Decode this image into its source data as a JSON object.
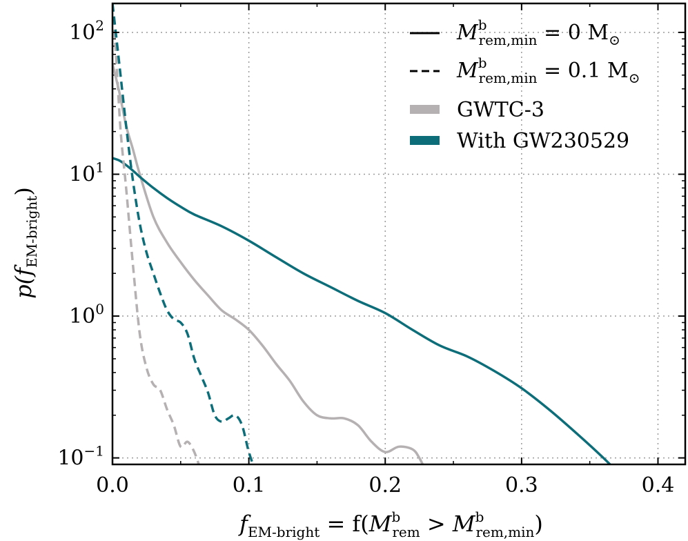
{
  "chart_data": {
    "type": "line",
    "y_scale": "log",
    "xlim": [
      0.0,
      0.42
    ],
    "ylim": [
      0.09,
      160
    ],
    "grid": true,
    "legend_position": "top-right",
    "xlabel": {
      "main": "f",
      "main_sub": "EM-bright",
      "equals": " = f(",
      "m1": "M",
      "m1_sup": "b",
      "m1_sub": "rem",
      "gt": " > ",
      "m2": "M",
      "m2_sup": "b",
      "m2_sub": "rem,min",
      "close": ")"
    },
    "ylabel": {
      "main": "p(f",
      "main_sub": "EM-bright",
      "close": ")"
    },
    "x_ticks": [
      {
        "value": 0.0,
        "label": "0.0"
      },
      {
        "value": 0.1,
        "label": "0.1"
      },
      {
        "value": 0.2,
        "label": "0.2"
      },
      {
        "value": 0.3,
        "label": "0.3"
      },
      {
        "value": 0.4,
        "label": "0.4"
      }
    ],
    "y_ticks": [
      {
        "value": 0.1,
        "base": "10",
        "exp": "−1"
      },
      {
        "value": 1,
        "base": "10",
        "exp": "0"
      },
      {
        "value": 10,
        "base": "10",
        "exp": "1"
      },
      {
        "value": 100,
        "base": "10",
        "exp": "2"
      }
    ],
    "legend": [
      {
        "kind": "line",
        "style": "solid",
        "color": "#000000",
        "text": "M",
        "sup": "b",
        "sub": "rem,min",
        "rest": " = 0 M",
        "sun": "⊙"
      },
      {
        "kind": "line",
        "style": "dashed",
        "color": "#000000",
        "text": "M",
        "sup": "b",
        "sub": "rem,min",
        "rest": " = 0.1 M",
        "sun": "⊙"
      },
      {
        "kind": "patch",
        "color": "#b5b0b2",
        "text": "GWTC-3"
      },
      {
        "kind": "patch",
        "color": "#0d6e7a",
        "text": "With GW230529"
      }
    ],
    "series": [
      {
        "name": "GWTC-3, Mrem,min = 0",
        "color": "#b5b0b2",
        "style": "solid",
        "x": [
          0.0,
          0.005,
          0.01,
          0.015,
          0.02,
          0.03,
          0.04,
          0.05,
          0.06,
          0.07,
          0.08,
          0.09,
          0.1,
          0.11,
          0.12,
          0.13,
          0.14,
          0.15,
          0.16,
          0.17,
          0.18,
          0.19,
          0.2,
          0.21,
          0.22,
          0.225,
          0.23
        ],
        "y": [
          60,
          38,
          22,
          15,
          10,
          5.0,
          3.3,
          2.4,
          1.8,
          1.4,
          1.1,
          0.95,
          0.8,
          0.62,
          0.46,
          0.35,
          0.25,
          0.2,
          0.19,
          0.19,
          0.17,
          0.13,
          0.11,
          0.12,
          0.115,
          0.1,
          0.08
        ]
      },
      {
        "name": "With GW230529, Mrem,min = 0",
        "color": "#0d6e7a",
        "style": "solid",
        "x": [
          0.0,
          0.005,
          0.01,
          0.015,
          0.02,
          0.03,
          0.04,
          0.05,
          0.06,
          0.08,
          0.1,
          0.12,
          0.14,
          0.16,
          0.18,
          0.2,
          0.22,
          0.24,
          0.26,
          0.28,
          0.3,
          0.32,
          0.34,
          0.36,
          0.37
        ],
        "y": [
          13,
          12.5,
          11.6,
          10.6,
          9.6,
          8.0,
          6.8,
          5.9,
          5.2,
          4.3,
          3.4,
          2.6,
          2.0,
          1.6,
          1.28,
          1.05,
          0.8,
          0.62,
          0.52,
          0.41,
          0.31,
          0.22,
          0.15,
          0.1,
          0.08
        ]
      },
      {
        "name": "GWTC-3, Mrem,min = 0.1",
        "color": "#b5b0b2",
        "style": "dashed",
        "x": [
          0.0,
          0.003,
          0.006,
          0.01,
          0.015,
          0.02,
          0.025,
          0.03,
          0.035,
          0.04,
          0.045,
          0.05,
          0.055,
          0.06,
          0.065
        ],
        "y": [
          160,
          60,
          20,
          8.0,
          2.3,
          0.75,
          0.43,
          0.33,
          0.3,
          0.22,
          0.17,
          0.12,
          0.13,
          0.11,
          0.08
        ]
      },
      {
        "name": "With GW230529, Mrem,min = 0.1",
        "color": "#0d6e7a",
        "style": "dashed",
        "x": [
          0.0,
          0.005,
          0.01,
          0.015,
          0.02,
          0.025,
          0.03,
          0.035,
          0.04,
          0.045,
          0.05,
          0.055,
          0.06,
          0.065,
          0.07,
          0.075,
          0.08,
          0.085,
          0.09,
          0.095,
          0.1,
          0.105
        ],
        "y": [
          160,
          60,
          22,
          9.0,
          4.5,
          2.8,
          2.0,
          1.45,
          1.1,
          0.95,
          0.9,
          0.75,
          0.5,
          0.38,
          0.29,
          0.2,
          0.18,
          0.19,
          0.2,
          0.17,
          0.11,
          0.08
        ]
      }
    ]
  }
}
